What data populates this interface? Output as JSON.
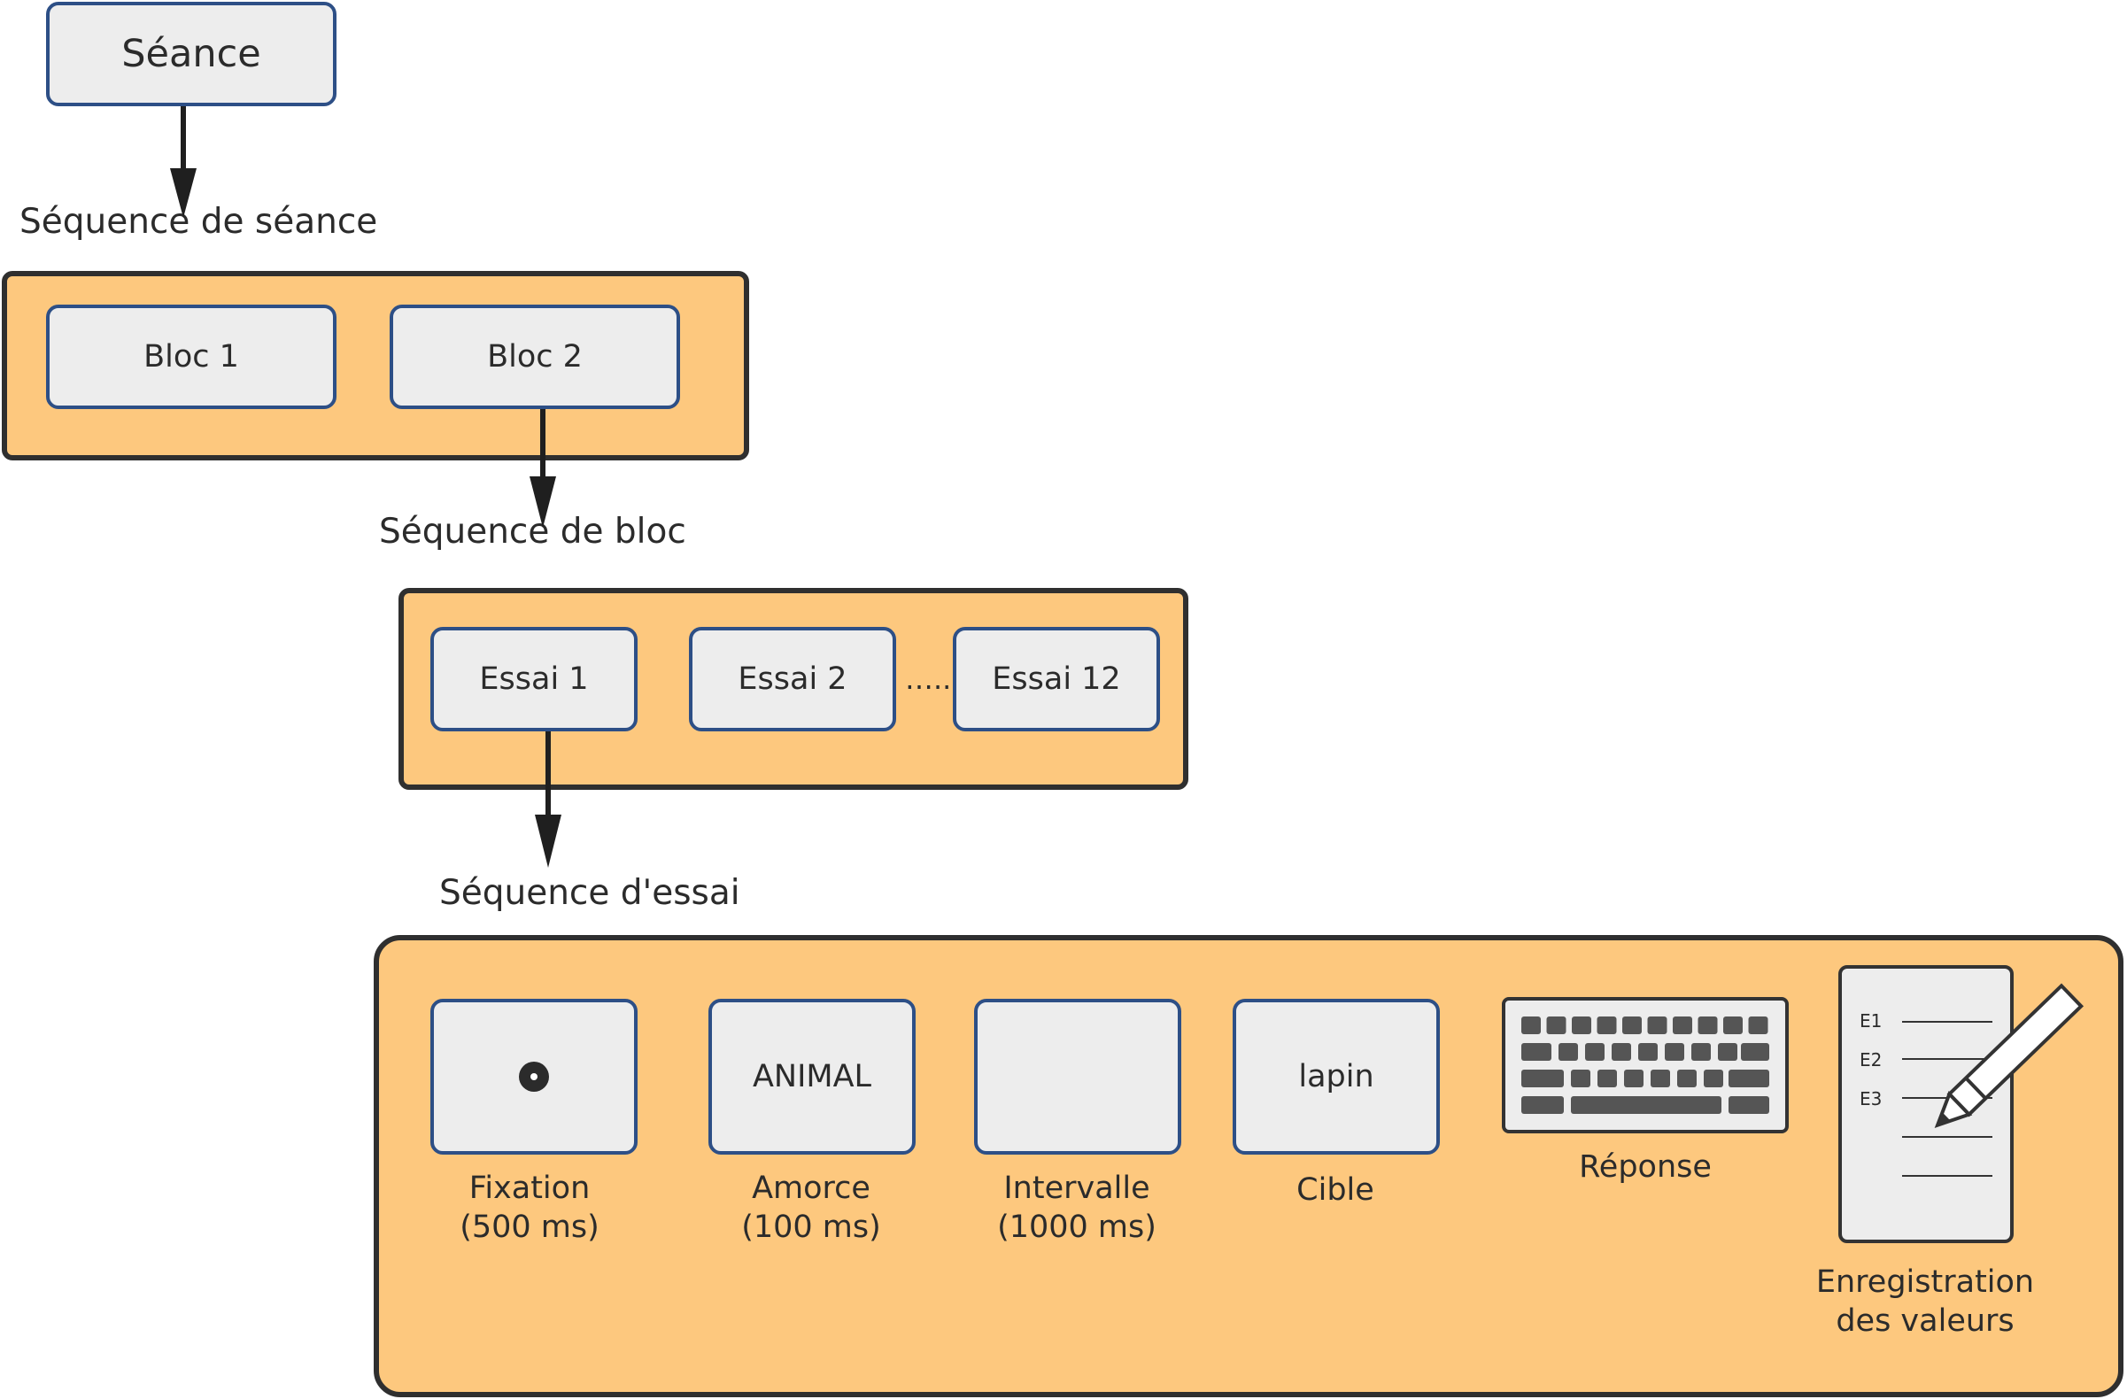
{
  "seance": {
    "label": "Séance"
  },
  "session_sequence": {
    "label": "Séquence de séance"
  },
  "blocks": [
    "Bloc 1",
    "Bloc 2"
  ],
  "block_sequence": {
    "label": "Séquence de bloc"
  },
  "trials": {
    "first": "Essai 1",
    "second": "Essai 2",
    "ellipsis": "…..",
    "last": "Essai 12"
  },
  "trial_sequence": {
    "label": "Séquence d'essai"
  },
  "steps": {
    "fixation": {
      "name": "Fixation",
      "duration": "(500 ms)"
    },
    "prime": {
      "name": "Amorce",
      "duration": "(100 ms)",
      "screen_text": "ANIMAL"
    },
    "interval": {
      "name": "Intervalle",
      "duration": "(1000 ms)"
    },
    "target": {
      "name": "Cible",
      "screen_text": "lapin"
    },
    "response": {
      "name": "Réponse",
      "icon": "keyboard-icon"
    },
    "recording": {
      "line1": "Enregistration",
      "line2": "des valeurs",
      "icon": "form-with-pencil-icon",
      "rows": [
        "E1",
        "E2",
        "E3"
      ]
    }
  },
  "colors": {
    "container_fill": "#fdc87e",
    "container_border": "#2f2f2f",
    "box_fill": "#ededed",
    "box_border": "#2d4f86",
    "arrow": "#1f1f1f"
  }
}
